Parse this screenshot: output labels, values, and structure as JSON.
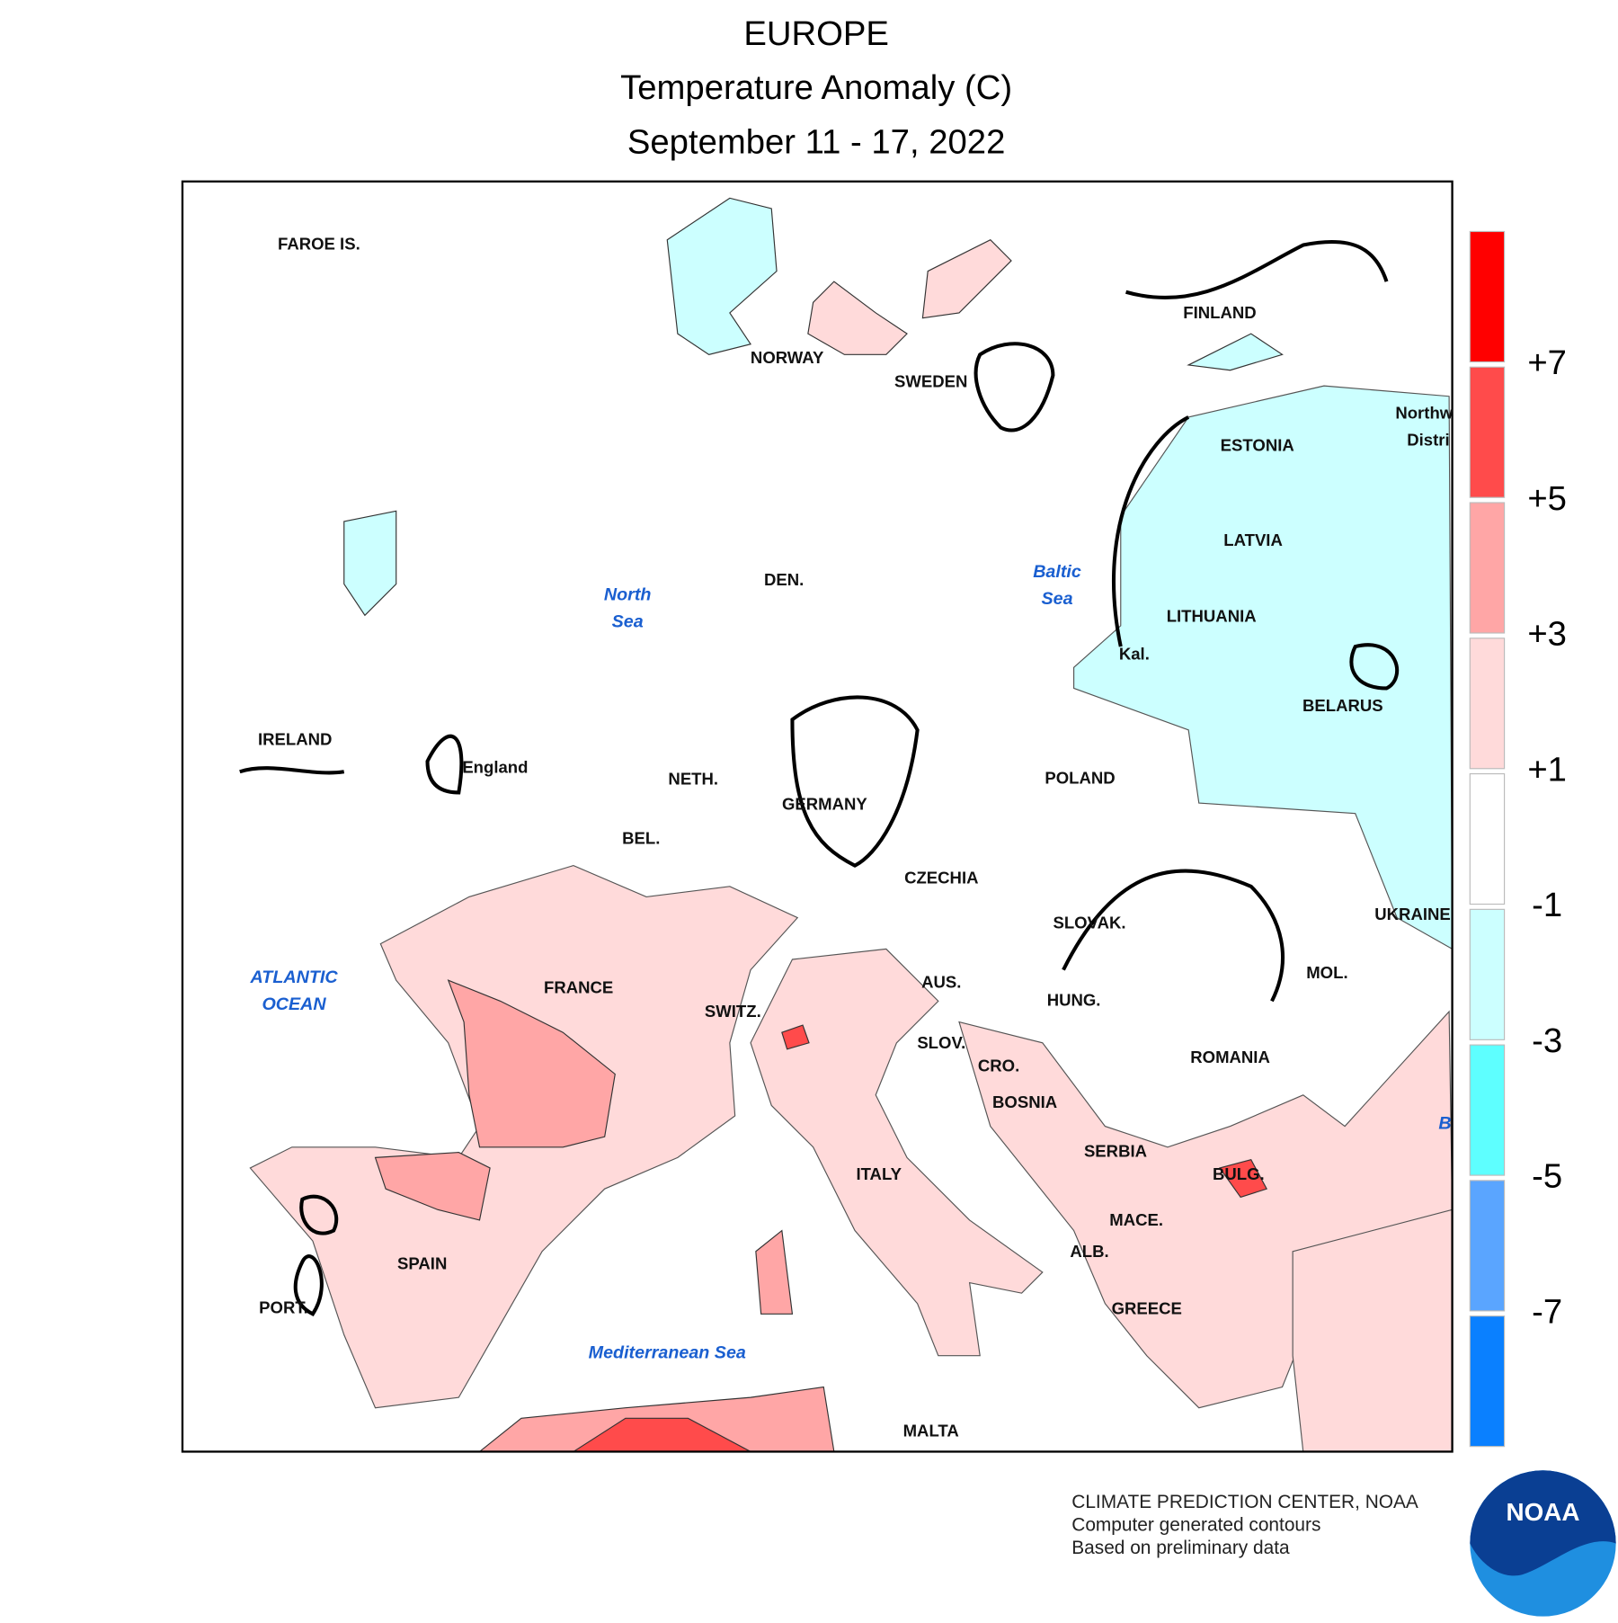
{
  "header": {
    "title": "EUROPE",
    "subtitle": "Temperature Anomaly (C)",
    "period": "September 11 - 17, 2022"
  },
  "map": {
    "countries": [
      "FAROE IS.",
      "NORWAY",
      "SWEDEN",
      "FINLAND",
      "ESTONIA",
      "LATVIA",
      "LITHUANIA",
      "BELARUS",
      "Northw",
      "Distri",
      "Kal.",
      "DEN.",
      "IRELAND",
      "England",
      "NETH.",
      "BEL.",
      "GERMANY",
      "POLAND",
      "CZECHIA",
      "SLOVAK.",
      "UKRAINE",
      "AUS.",
      "HUNG.",
      "MOL.",
      "SWITZ.",
      "SLOV.",
      "CRO.",
      "ROMANIA",
      "FRANCE",
      "BOSNIA",
      "SERBIA",
      "BULG.",
      "ITALY",
      "MACE.",
      "ALB.",
      "SPAIN",
      "PORT.",
      "GREECE",
      "MALTA"
    ],
    "seas": [
      "North",
      "Sea",
      "Baltic",
      "Sea",
      "ATLANTIC",
      "OCEAN",
      "Mediterranean Sea",
      "B"
    ]
  },
  "legend": {
    "colors": [
      "#ff0000",
      "#ff4b4b",
      "#ffa6a6",
      "#ffdada",
      "#ffffff",
      "#ccffff",
      "#5effff",
      "#5aa5ff",
      "#0a80ff"
    ],
    "ticks": [
      {
        "value": 7,
        "label": "+7"
      },
      {
        "value": 5,
        "label": "+5"
      },
      {
        "value": 3,
        "label": "+3"
      },
      {
        "value": 1,
        "label": "+1"
      },
      -1,
      -3,
      -5,
      -7
    ]
  },
  "footer": {
    "line1": "CLIMATE PREDICTION CENTER, NOAA",
    "line2": "Computer generated contours",
    "line3": "Based on preliminary data",
    "logo": "NOAA"
  }
}
